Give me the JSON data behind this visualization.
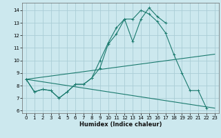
{
  "xlabel": "Humidex (Indice chaleur)",
  "background_color": "#cce8ee",
  "grid_color": "#aacdd6",
  "line_color": "#1a7a6e",
  "xlim": [
    -0.5,
    23.5
  ],
  "ylim": [
    5.8,
    14.6
  ],
  "xticks": [
    0,
    1,
    2,
    3,
    4,
    5,
    6,
    7,
    8,
    9,
    10,
    11,
    12,
    13,
    14,
    15,
    16,
    17,
    18,
    19,
    20,
    21,
    22,
    23
  ],
  "yticks": [
    6,
    7,
    8,
    9,
    10,
    11,
    12,
    13,
    14
  ],
  "series1_x": [
    0,
    1,
    2,
    3,
    4,
    5,
    6,
    7,
    8,
    9,
    10,
    11,
    12,
    13,
    14,
    15,
    16,
    17,
    18,
    19,
    20,
    21,
    22
  ],
  "series1_y": [
    8.5,
    7.5,
    7.7,
    7.6,
    7.0,
    7.5,
    8.1,
    8.1,
    8.6,
    10.0,
    11.4,
    12.6,
    13.3,
    13.3,
    14.0,
    13.7,
    13.1,
    12.2,
    10.5,
    9.0,
    7.6,
    7.6,
    6.2
  ],
  "series2_x": [
    0,
    1,
    2,
    3,
    4,
    5,
    6,
    7,
    8,
    9,
    10,
    11,
    12,
    13,
    14,
    15,
    16,
    17
  ],
  "series2_y": [
    8.5,
    7.5,
    7.7,
    7.6,
    7.0,
    7.5,
    8.1,
    8.1,
    8.6,
    9.4,
    11.3,
    12.1,
    13.3,
    11.5,
    13.3,
    14.2,
    13.5,
    13.0
  ],
  "line3_x": [
    0,
    23
  ],
  "line3_y": [
    8.5,
    10.5
  ],
  "line4_x": [
    0,
    23
  ],
  "line4_y": [
    8.5,
    6.2
  ]
}
